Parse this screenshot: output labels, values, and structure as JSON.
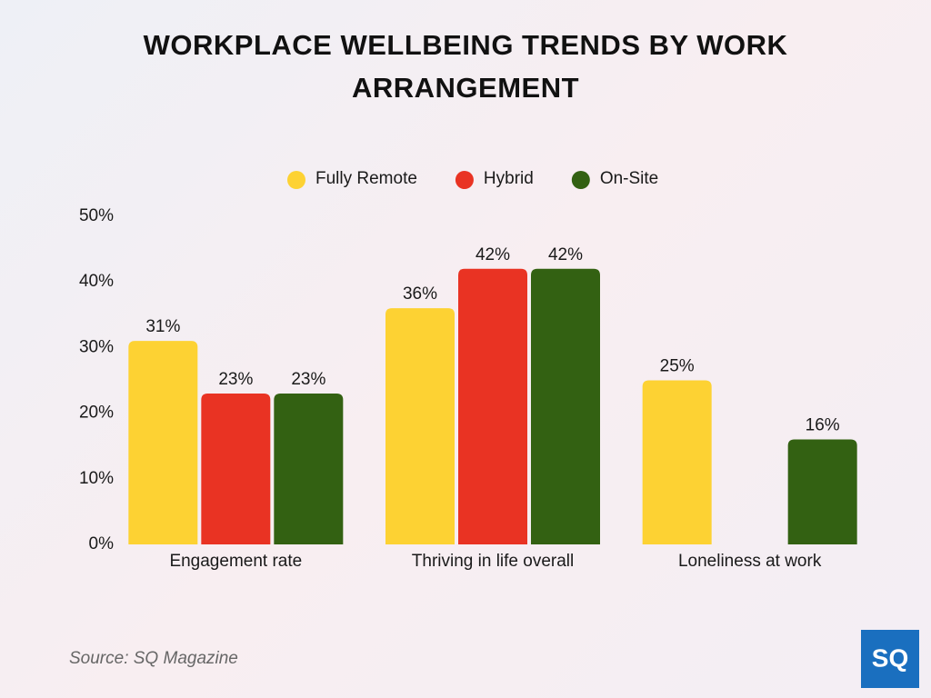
{
  "chart_data": {
    "type": "bar",
    "title": "WORKPLACE WELLBEING TRENDS BY WORK ARRANGEMENT",
    "categories": [
      "Engagement rate",
      "Thriving in life overall",
      "Loneliness at work"
    ],
    "series": [
      {
        "name": "Fully Remote",
        "color": "#fdd233",
        "values": [
          31,
          36,
          25
        ],
        "value_labels": [
          "31%",
          "36%",
          "25%"
        ]
      },
      {
        "name": "Hybrid",
        "color": "#e93323",
        "values": [
          23,
          42,
          null
        ],
        "value_labels": [
          "23%",
          "42%",
          null
        ]
      },
      {
        "name": "On-Site",
        "color": "#336112",
        "values": [
          23,
          42,
          16
        ],
        "value_labels": [
          "23%",
          "42%",
          "16%"
        ]
      }
    ],
    "ylim": [
      0,
      50
    ],
    "yticks": [
      {
        "value": 0,
        "label": "0%"
      },
      {
        "value": 10,
        "label": "10%"
      },
      {
        "value": 20,
        "label": "20%"
      },
      {
        "value": 30,
        "label": "30%"
      },
      {
        "value": 40,
        "label": "40%"
      },
      {
        "value": 50,
        "label": "50%"
      }
    ],
    "grid": false,
    "legend": "top",
    "source": "Source: SQ Magazine",
    "logo": "SQ"
  }
}
